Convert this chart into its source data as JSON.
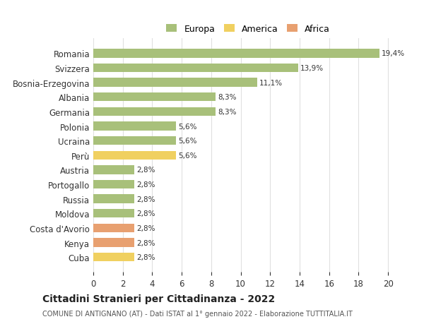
{
  "countries": [
    "Romania",
    "Svizzera",
    "Bosnia-Erzegovina",
    "Albania",
    "Germania",
    "Polonia",
    "Ucraina",
    "Perù",
    "Austria",
    "Portogallo",
    "Russia",
    "Moldova",
    "Costa d'Avorio",
    "Kenya",
    "Cuba"
  ],
  "values": [
    19.4,
    13.9,
    11.1,
    8.3,
    8.3,
    5.6,
    5.6,
    5.6,
    2.8,
    2.8,
    2.8,
    2.8,
    2.8,
    2.8,
    2.8
  ],
  "continents": [
    "Europa",
    "Europa",
    "Europa",
    "Europa",
    "Europa",
    "Europa",
    "Europa",
    "America",
    "Europa",
    "Europa",
    "Europa",
    "Europa",
    "Africa",
    "Africa",
    "America"
  ],
  "colors": {
    "Europa": "#a8c07a",
    "America": "#f0d060",
    "Africa": "#e8a070"
  },
  "legend_colors": {
    "Europa": "#a8c07a",
    "America": "#f0d060",
    "Africa": "#e8a070"
  },
  "xlim": [
    0,
    21
  ],
  "xticks": [
    0,
    2,
    4,
    6,
    8,
    10,
    12,
    14,
    16,
    18,
    20
  ],
  "background_color": "#ffffff",
  "grid_color": "#e0e0e0",
  "title": "Cittadini Stranieri per Cittadinanza - 2022",
  "subtitle": "COMUNE DI ANTIGNANO (AT) - Dati ISTAT al 1° gennaio 2022 - Elaborazione TUTTITALIA.IT",
  "bar_height": 0.6
}
